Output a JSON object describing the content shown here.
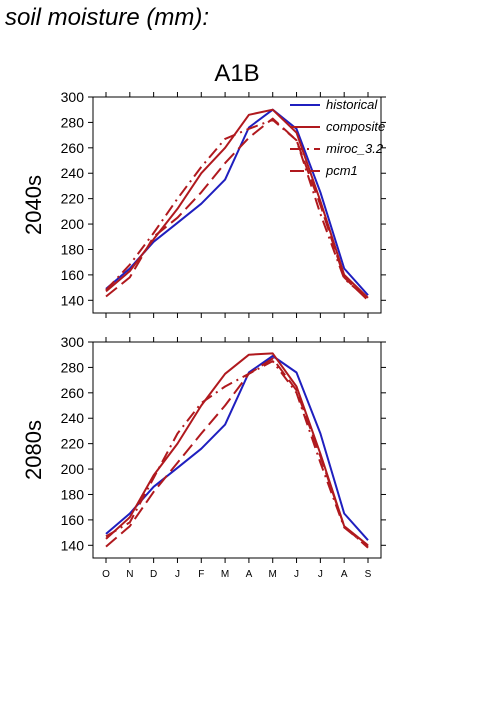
{
  "page_title": "soil moisture (mm):",
  "chart_data": {
    "type": "line",
    "scenario": "A1B",
    "x_ticks": [
      "O",
      "N",
      "D",
      "J",
      "F",
      "M",
      "A",
      "M",
      "J",
      "J",
      "A",
      "S"
    ],
    "ylim": [
      130,
      300
    ],
    "y_ticks": [
      140,
      160,
      180,
      200,
      220,
      240,
      260,
      280,
      300
    ],
    "legend": [
      "historical",
      "composite",
      "miroc_3.2",
      "pcm1"
    ],
    "colors": {
      "historical": "#1f1fbf",
      "composite": "#b0191e",
      "miroc_3.2": "#b0191e",
      "pcm1": "#b0191e"
    },
    "panels": [
      {
        "label": "2040s",
        "series": [
          {
            "name": "historical",
            "style": "solid",
            "values": [
              149,
              165,
              186,
              201,
              216,
              235,
              276,
              290,
              275,
              225,
              165,
              144
            ]
          },
          {
            "name": "composite",
            "style": "solid",
            "values": [
              147,
              163,
              188,
              212,
              240,
              260,
              286,
              290,
              272,
              218,
              160,
              142
            ]
          },
          {
            "name": "miroc_3.2",
            "style": "dashdot",
            "values": [
              148,
              168,
              193,
              220,
              245,
              267,
              275,
              282,
              266,
              208,
              157,
              141
            ]
          },
          {
            "name": "pcm1",
            "style": "dash",
            "values": [
              143,
              158,
              190,
              205,
              225,
              248,
              268,
              283,
              266,
              215,
              158,
              140
            ]
          }
        ]
      },
      {
        "label": "2080s",
        "series": [
          {
            "name": "historical",
            "style": "solid",
            "values": [
              149,
              165,
              186,
              201,
              216,
              235,
              276,
              289,
              276,
              228,
              165,
              144
            ]
          },
          {
            "name": "composite",
            "style": "solid",
            "values": [
              145,
              162,
              195,
              220,
              250,
              275,
              290,
              291,
              265,
              212,
              155,
              140
            ]
          },
          {
            "name": "miroc_3.2",
            "style": "dashdot",
            "values": [
              147,
              158,
              193,
              228,
              252,
              265,
              275,
              285,
              260,
              205,
              154,
              139
            ]
          },
          {
            "name": "pcm1",
            "style": "dash",
            "values": [
              139,
              155,
              182,
              205,
              228,
              250,
              275,
              287,
              262,
              210,
              155,
              138
            ]
          }
        ]
      }
    ]
  }
}
